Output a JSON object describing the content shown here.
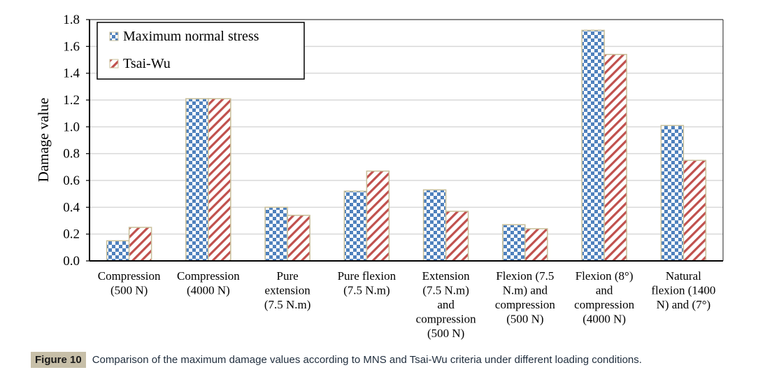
{
  "chart_data": {
    "type": "bar",
    "title": "",
    "xlabel": "",
    "ylabel": "Damage value",
    "ylim": [
      0,
      1.8
    ],
    "yticks": [
      "0.0",
      "0.2",
      "0.4",
      "0.6",
      "0.8",
      "1.0",
      "1.2",
      "1.4",
      "1.6",
      "1.8"
    ],
    "grid": true,
    "legend_position": "top-left",
    "categories": [
      [
        "Compression",
        "(500 N)"
      ],
      [
        "Compression",
        "(4000 N)"
      ],
      [
        "Pure",
        "extension",
        "(7.5 N.m)"
      ],
      [
        "Pure flexion",
        "(7.5 N.m)"
      ],
      [
        "Extension",
        "(7.5 N.m)",
        "and",
        "compression",
        "(500 N)"
      ],
      [
        "Flexion (7.5",
        "N.m) and",
        "compression",
        "(500 N)"
      ],
      [
        "Flexion (8°)",
        "and",
        "compression",
        "(4000 N)"
      ],
      [
        "Natural",
        "flexion (1400",
        "N) and (7°)"
      ]
    ],
    "series": [
      {
        "name": "Maximum normal stress",
        "pattern": "checker",
        "color": "#4f81bd",
        "values": [
          0.15,
          1.21,
          0.4,
          0.52,
          0.53,
          0.27,
          1.72,
          1.01
        ]
      },
      {
        "name": "Tsai-Wu",
        "pattern": "diagonal",
        "color": "#c0504d",
        "values": [
          0.25,
          1.21,
          0.34,
          0.67,
          0.37,
          0.24,
          1.54,
          0.75
        ]
      }
    ]
  },
  "caption": {
    "label": "Figure 10",
    "text": "Comparison of the maximum damage values according to MNS and Tsai-Wu criteria under different loading conditions."
  },
  "colors": {
    "bar_border": "#c8bf9a",
    "caption_badge": "#c7bfa8"
  }
}
